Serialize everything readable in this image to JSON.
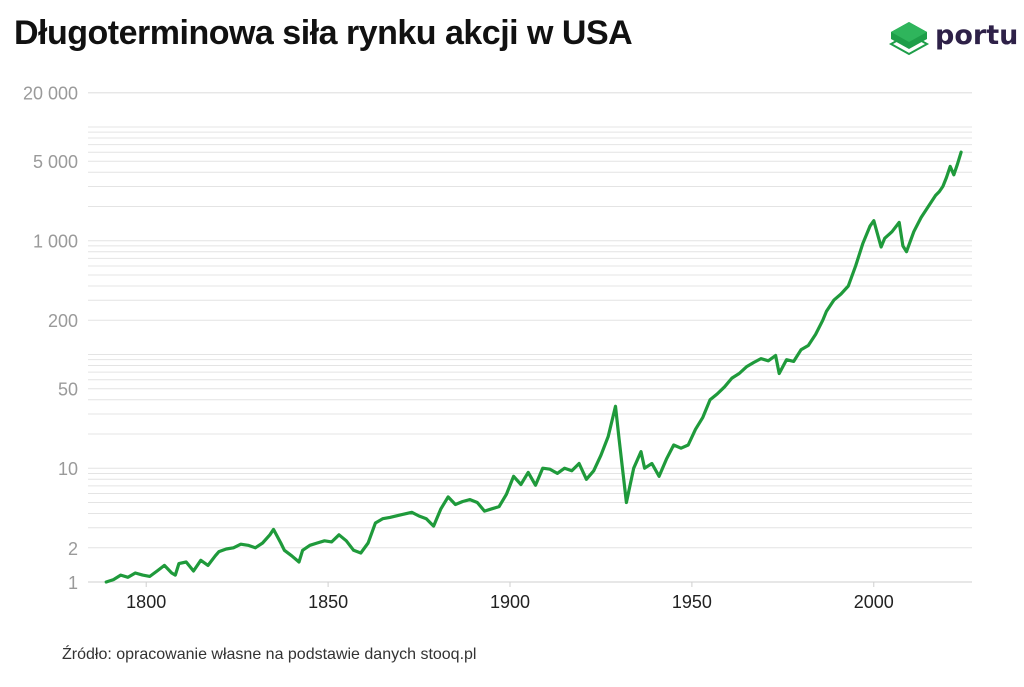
{
  "page": {
    "title": "Długoterminowa siła rynku akcji w USA",
    "logo_text": "portu",
    "source": "Źródło: opracowanie własne na podstawie danych stooq.pl"
  },
  "colors": {
    "line": "#1f9a3b",
    "logo_green": "#1e9e49",
    "logo_text": "#2e2148",
    "axis_text": "#9a9a9a",
    "grid": "#e4e4e4"
  },
  "chart_data": {
    "type": "line",
    "title": "Długoterminowa siła rynku akcji w USA",
    "xlabel": "",
    "ylabel": "",
    "y_scale": "log",
    "xlim": [
      1784,
      2027
    ],
    "ylim": [
      1,
      22000
    ],
    "grid": true,
    "legend": "none",
    "x_ticks": [
      1800,
      1850,
      1900,
      1950,
      2000
    ],
    "x_tick_labels": [
      "1800",
      "1850",
      "1900",
      "1950",
      "2000"
    ],
    "y_ticks": [
      1,
      2,
      10,
      50,
      200,
      1000,
      5000,
      20000
    ],
    "y_tick_labels": [
      "1",
      "2",
      "10",
      "50",
      "200",
      "1 000",
      "5 000",
      "20 000"
    ],
    "series": [
      {
        "x": [
          1789,
          1791,
          1793,
          1795,
          1797,
          1799,
          1801,
          1803,
          1805,
          1807,
          1808,
          1809,
          1811,
          1813,
          1815,
          1817,
          1819,
          1820,
          1822,
          1824,
          1826,
          1828,
          1830,
          1832,
          1834,
          1835,
          1837,
          1838,
          1840,
          1842,
          1843,
          1845,
          1847,
          1849,
          1851,
          1853,
          1855,
          1857,
          1859,
          1861,
          1863,
          1865,
          1867,
          1870,
          1873,
          1875,
          1877,
          1879,
          1881,
          1883,
          1885,
          1887,
          1889,
          1891,
          1893,
          1895,
          1897,
          1899,
          1901,
          1903,
          1905,
          1907,
          1909,
          1911,
          1913,
          1915,
          1917,
          1919,
          1921,
          1923,
          1925,
          1927,
          1929,
          1930,
          1932,
          1934,
          1936,
          1937,
          1939,
          1941,
          1943,
          1945,
          1947,
          1949,
          1951,
          1953,
          1955,
          1957,
          1959,
          1961,
          1963,
          1965,
          1967,
          1969,
          1971,
          1973,
          1974,
          1976,
          1978,
          1980,
          1982,
          1984,
          1986,
          1987,
          1989,
          1991,
          1993,
          1995,
          1997,
          1999,
          2000,
          2002,
          2003,
          2005,
          2007,
          2008,
          2009,
          2011,
          2013,
          2015,
          2017,
          2018,
          2019,
          2020,
          2021,
          2022,
          2023,
          2024
        ],
        "values": [
          1.0,
          1.05,
          1.15,
          1.1,
          1.2,
          1.15,
          1.12,
          1.25,
          1.4,
          1.2,
          1.15,
          1.45,
          1.5,
          1.25,
          1.55,
          1.4,
          1.7,
          1.85,
          1.95,
          2.0,
          2.15,
          2.1,
          2.0,
          2.2,
          2.6,
          2.9,
          2.2,
          1.9,
          1.7,
          1.5,
          1.9,
          2.1,
          2.2,
          2.3,
          2.25,
          2.6,
          2.3,
          1.9,
          1.8,
          2.2,
          3.3,
          3.6,
          3.7,
          3.9,
          4.1,
          3.8,
          3.6,
          3.1,
          4.4,
          5.6,
          4.8,
          5.1,
          5.3,
          5.0,
          4.2,
          4.4,
          4.6,
          5.9,
          8.5,
          7.2,
          9.2,
          7.1,
          10.0,
          9.8,
          9.0,
          10.0,
          9.5,
          11.0,
          8.0,
          9.5,
          13.0,
          19.0,
          35.0,
          18.0,
          5.0,
          10.0,
          14.0,
          10.0,
          11.0,
          8.5,
          12.0,
          16.0,
          15.0,
          16.0,
          22.0,
          28.0,
          40.0,
          45.0,
          52.0,
          62.0,
          68.0,
          78.0,
          85.0,
          92.0,
          88.0,
          98.0,
          68.0,
          90.0,
          87.0,
          110.0,
          120.0,
          150.0,
          200.0,
          240.0,
          300.0,
          340.0,
          400.0,
          600.0,
          950.0,
          1350.0,
          1500.0,
          880.0,
          1050.0,
          1200.0,
          1450.0,
          900.0,
          800.0,
          1200.0,
          1600.0,
          2000.0,
          2500.0,
          2700.0,
          3000.0,
          3600.0,
          4500.0,
          3800.0,
          4700.0,
          6000.0
        ]
      }
    ]
  }
}
